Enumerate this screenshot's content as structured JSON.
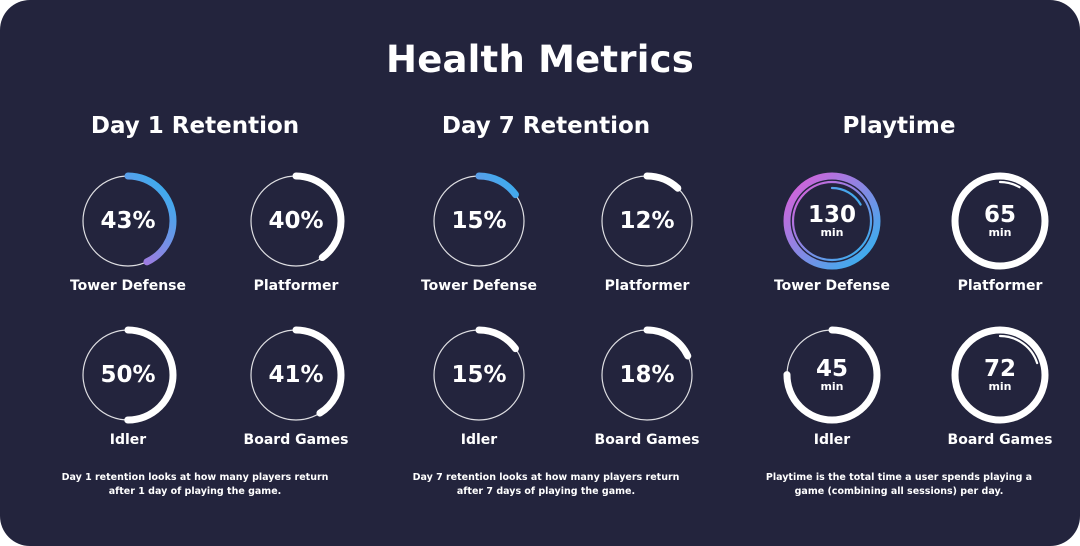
{
  "title": "Health Metrics",
  "colors": {
    "background": "#23243d",
    "ring": "#ffffff",
    "track": "#ffffff",
    "gradient_start": "#e15bd8",
    "gradient_end": "#29b6f0"
  },
  "sections": [
    {
      "title": "Day 1 Retention",
      "note_line1": "Day 1 retention looks at how many players return",
      "note_line2": "after 1 day of playing the game.",
      "items": [
        {
          "label": "Tower Defense",
          "display": "43%",
          "value": 43,
          "max": 100,
          "gradient": true
        },
        {
          "label": "Platformer",
          "display": "40%",
          "value": 40,
          "max": 100,
          "gradient": false
        },
        {
          "label": "Idler",
          "display": "50%",
          "value": 50,
          "max": 100,
          "gradient": false
        },
        {
          "label": "Board Games",
          "display": "41%",
          "value": 41,
          "max": 100,
          "gradient": false
        }
      ]
    },
    {
      "title": "Day 7 Retention",
      "note_line1": "Day 7 retention looks at how many players return",
      "note_line2": "after 7 days of playing the game.",
      "items": [
        {
          "label": "Tower Defense",
          "display": "15%",
          "value": 15,
          "max": 100,
          "gradient": true
        },
        {
          "label": "Platformer",
          "display": "12%",
          "value": 12,
          "max": 100,
          "gradient": false
        },
        {
          "label": "Idler",
          "display": "15%",
          "value": 15,
          "max": 100,
          "gradient": false
        },
        {
          "label": "Board Games",
          "display": "18%",
          "value": 18,
          "max": 100,
          "gradient": false
        }
      ]
    },
    {
      "title": "Playtime",
      "note_line1": "Playtime is the total time a user spends playing a",
      "note_line2": "game (combining all sessions) per day.",
      "items": [
        {
          "label": "Tower Defense",
          "display": "130",
          "unit": "min",
          "value": 130,
          "max": 60,
          "gradient": true
        },
        {
          "label": "Platformer",
          "display": "65",
          "unit": "min",
          "value": 65,
          "max": 60,
          "gradient": false
        },
        {
          "label": "Idler",
          "display": "45",
          "unit": "min",
          "value": 45,
          "max": 60,
          "gradient": false
        },
        {
          "label": "Board Games",
          "display": "72",
          "unit": "min",
          "value": 72,
          "max": 60,
          "gradient": false
        }
      ]
    }
  ],
  "chart_data": {
    "type": "radial-gauge",
    "title": "Health Metrics",
    "charts": [
      {
        "title": "Day 1 Retention",
        "categories": [
          "Tower Defense",
          "Platformer",
          "Idler",
          "Board Games"
        ],
        "values": [
          43,
          40,
          50,
          41
        ],
        "unit": "%"
      },
      {
        "title": "Day 7 Retention",
        "categories": [
          "Tower Defense",
          "Platformer",
          "Idler",
          "Board Games"
        ],
        "values": [
          15,
          12,
          15,
          18
        ],
        "unit": "%"
      },
      {
        "title": "Playtime",
        "categories": [
          "Tower Defense",
          "Platformer",
          "Idler",
          "Board Games"
        ],
        "values": [
          130,
          65,
          45,
          72
        ],
        "unit": "min"
      }
    ]
  }
}
